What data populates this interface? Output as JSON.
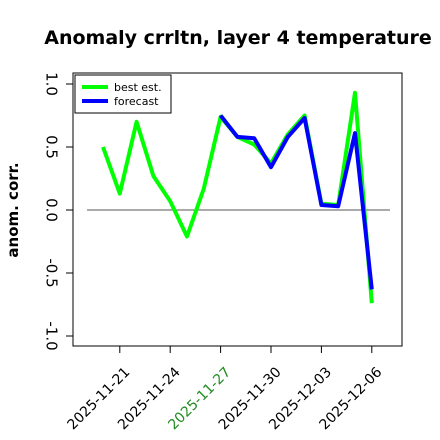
{
  "chart_data": {
    "type": "line",
    "title": "Anomaly crrltn, layer 4 temperature",
    "ylabel": "anom. corr.",
    "xlabel": "",
    "ylim": [
      -1.0,
      1.0
    ],
    "yticks": [
      "-1.0",
      "-0.5",
      "0.0",
      "0.5",
      "1.0"
    ],
    "xticks": [
      {
        "label": "2025-11-21",
        "color": "#000000"
      },
      {
        "label": "2025-11-24",
        "color": "#000000"
      },
      {
        "label": "2025-11-27",
        "color": "#228B22"
      },
      {
        "label": "2025-11-30",
        "color": "#000000"
      },
      {
        "label": "2025-12-03",
        "color": "#000000"
      },
      {
        "label": "2025-12-06",
        "color": "#000000"
      }
    ],
    "reference_line": 0.0,
    "x": [
      "2025-11-20",
      "2025-11-21",
      "2025-11-22",
      "2025-11-23",
      "2025-11-24",
      "2025-11-25",
      "2025-11-26",
      "2025-11-27",
      "2025-11-28",
      "2025-11-29",
      "2025-11-30",
      "2025-12-01",
      "2025-12-02",
      "2025-12-03",
      "2025-12-04",
      "2025-12-05",
      "2025-12-06"
    ],
    "series": [
      {
        "name": "best est.",
        "color": "#00ff00",
        "values": [
          0.5,
          0.13,
          0.7,
          0.27,
          0.07,
          -0.21,
          0.17,
          0.74,
          0.58,
          0.52,
          0.37,
          0.6,
          0.75,
          0.05,
          0.04,
          0.93,
          -0.74
        ]
      },
      {
        "name": "forecast",
        "color": "#0000ff",
        "values": [
          null,
          null,
          null,
          null,
          null,
          null,
          null,
          0.75,
          0.58,
          0.57,
          0.34,
          0.58,
          0.73,
          0.04,
          0.03,
          0.61,
          -0.63
        ]
      }
    ],
    "legend_position": "top-left",
    "grid": false
  }
}
